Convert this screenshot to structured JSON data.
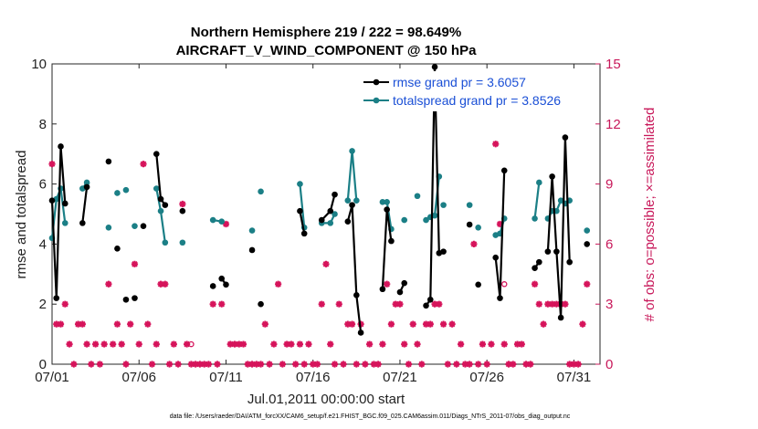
{
  "chart_data": {
    "type": "line",
    "title_line1": "Northern Hemisphere 219 / 222 = 98.649%",
    "title_line2": "AIRCRAFT_V_WIND_COMPONENT @ 150 hPa",
    "xlabel": "Jul.01,2011 00:00:00 start",
    "ylabel_left": "rmse and totalspread",
    "ylabel_right": "# of obs: o=possible; ×=assimilated",
    "footer": "data file: /Users/raeder/DAI/ATM_forcXX/CAM6_setup/f.e21.FHIST_BGC.f09_025.CAM6assim.011/Diags_NTrS_2011-07/obs_diag_output.nc",
    "xlim": [
      0,
      31.5
    ],
    "ylim_left": [
      0,
      10
    ],
    "ylim_right": [
      0,
      15
    ],
    "x_ticks": [
      {
        "x": 0,
        "label": "07/01"
      },
      {
        "x": 5,
        "label": "07/06"
      },
      {
        "x": 10,
        "label": "07/11"
      },
      {
        "x": 15,
        "label": "07/16"
      },
      {
        "x": 20,
        "label": "07/21"
      },
      {
        "x": 25,
        "label": "07/26"
      },
      {
        "x": 30,
        "label": "07/31"
      }
    ],
    "y_ticks_left": [
      {
        "v": 0,
        "label": "0"
      },
      {
        "v": 2,
        "label": "2"
      },
      {
        "v": 4,
        "label": "4"
      },
      {
        "v": 6,
        "label": "6"
      },
      {
        "v": 8,
        "label": "8"
      },
      {
        "v": 10,
        "label": "10"
      }
    ],
    "y_ticks_right": [
      {
        "v": 0,
        "label": "0"
      },
      {
        "v": 3,
        "label": "3"
      },
      {
        "v": 6,
        "label": "6"
      },
      {
        "v": 9,
        "label": "9"
      },
      {
        "v": 12,
        "label": "12"
      },
      {
        "v": 15,
        "label": "15"
      }
    ],
    "colors": {
      "rmse": "#000000",
      "spread": "#1b7f86",
      "obs": "#d6145b",
      "legend_text": "#1a4fd6"
    },
    "series": [
      {
        "name": "rmse grand pr = 3.6057",
        "points": [
          [
            [
              0,
              5.45
            ],
            [
              0.25,
              2.2
            ],
            [
              0.5,
              7.25
            ],
            [
              0.75,
              5.35
            ]
          ],
          [
            [
              1.75,
              4.7
            ],
            [
              2.0,
              5.9
            ]
          ],
          [
            [
              3.25,
              6.75
            ]
          ],
          [
            [
              3.75,
              3.85
            ]
          ],
          [
            [
              4.25,
              2.15
            ]
          ],
          [
            [
              4.75,
              2.2
            ]
          ],
          [
            [
              5.25,
              4.6
            ]
          ],
          [
            [
              6.0,
              7.0
            ],
            [
              6.25,
              5.5
            ],
            [
              6.5,
              5.3
            ]
          ],
          [
            [
              7.5,
              5.1
            ]
          ],
          [
            [
              9.25,
              2.6
            ]
          ],
          [
            [
              9.75,
              2.85
            ],
            [
              10.0,
              2.65
            ]
          ],
          [
            [
              11.5,
              3.8
            ]
          ],
          [
            [
              12.0,
              2.0
            ]
          ],
          [
            [
              14.25,
              5.1
            ],
            [
              14.5,
              4.35
            ]
          ],
          [
            [
              15.5,
              4.8
            ],
            [
              16.0,
              5.1
            ],
            [
              16.25,
              5.65
            ]
          ],
          [
            [
              17.0,
              4.75
            ],
            [
              17.25,
              5.3
            ],
            [
              17.5,
              2.3
            ],
            [
              17.75,
              1.05
            ]
          ],
          [
            [
              19.0,
              2.5
            ],
            [
              19.25,
              5.15
            ],
            [
              19.5,
              4.1
            ]
          ],
          [
            [
              20.0,
              2.4
            ],
            [
              20.25,
              2.7
            ]
          ],
          [
            [
              21.0,
              9.65
            ]
          ],
          [
            [
              21.5,
              1.95
            ],
            [
              21.75,
              2.15
            ],
            [
              22.0,
              9.9
            ],
            [
              22.25,
              3.7
            ]
          ],
          [
            [
              22.5,
              3.75
            ]
          ],
          [
            [
              24.0,
              4.65
            ]
          ],
          [
            [
              24.5,
              2.65
            ]
          ],
          [
            [
              25.5,
              3.55
            ],
            [
              25.75,
              2.2
            ],
            [
              26.0,
              6.45
            ]
          ],
          [
            [
              27.75,
              3.2
            ],
            [
              28.0,
              3.4
            ]
          ],
          [
            [
              28.5,
              3.75
            ],
            [
              28.75,
              6.25
            ],
            [
              29.0,
              3.75
            ],
            [
              29.25,
              1.55
            ],
            [
              29.5,
              7.55
            ],
            [
              29.75,
              3.4
            ]
          ],
          [
            [
              30.75,
              4.0
            ]
          ]
        ]
      },
      {
        "name": "totalspread grand pr = 3.8526",
        "points": [
          [
            [
              0,
              4.2
            ],
            [
              0.25,
              5.5
            ],
            [
              0.5,
              5.85
            ],
            [
              0.75,
              4.7
            ]
          ],
          [
            [
              1.75,
              5.85
            ],
            [
              2.0,
              6.05
            ]
          ],
          [
            [
              3.25,
              4.55
            ]
          ],
          [
            [
              3.75,
              5.7
            ]
          ],
          [
            [
              4.25,
              5.8
            ]
          ],
          [
            [
              4.75,
              4.6
            ]
          ],
          [
            [
              6.0,
              5.85
            ],
            [
              6.25,
              5.1
            ],
            [
              6.5,
              4.05
            ]
          ],
          [
            [
              7.5,
              4.05
            ]
          ],
          [
            [
              9.25,
              4.8
            ],
            [
              9.75,
              4.75
            ]
          ],
          [
            [
              11.5,
              4.45
            ]
          ],
          [
            [
              12.0,
              5.75
            ]
          ],
          [
            [
              14.25,
              6.0
            ],
            [
              14.5,
              4.55
            ]
          ],
          [
            [
              15.5,
              4.7
            ],
            [
              16.0,
              4.7
            ],
            [
              16.25,
              5.0
            ]
          ],
          [
            [
              17.0,
              5.45
            ],
            [
              17.25,
              7.1
            ],
            [
              17.5,
              5.45
            ]
          ],
          [
            [
              19.0,
              5.4
            ],
            [
              19.25,
              5.4
            ],
            [
              19.5,
              4.5
            ]
          ],
          [
            [
              20.25,
              4.8
            ]
          ],
          [
            [
              21.0,
              5.6
            ]
          ],
          [
            [
              21.5,
              4.8
            ],
            [
              21.75,
              4.9
            ],
            [
              22.0,
              4.95
            ],
            [
              22.25,
              6.25
            ]
          ],
          [
            [
              22.5,
              5.3
            ]
          ],
          [
            [
              24.0,
              5.3
            ]
          ],
          [
            [
              24.5,
              4.55
            ]
          ],
          [
            [
              25.5,
              4.3
            ],
            [
              25.75,
              4.35
            ],
            [
              26.0,
              4.85
            ]
          ],
          [
            [
              27.75,
              4.85
            ],
            [
              28.0,
              6.05
            ]
          ],
          [
            [
              28.5,
              4.85
            ],
            [
              28.75,
              5.1
            ],
            [
              29.0,
              5.1
            ],
            [
              29.25,
              5.45
            ],
            [
              29.5,
              5.35
            ],
            [
              29.75,
              5.45
            ]
          ],
          [
            [
              30.75,
              4.45
            ]
          ]
        ]
      },
      {
        "name": "# of obs assimilated",
        "points": [
          [
            0,
            10.0
          ],
          [
            0.25,
            2.0
          ],
          [
            0.5,
            2.0
          ],
          [
            0.75,
            3.0
          ],
          [
            1.0,
            1.0
          ],
          [
            1.25,
            0.0
          ],
          [
            1.5,
            2.0
          ],
          [
            1.75,
            2.0
          ],
          [
            2.0,
            1.0
          ],
          [
            2.25,
            0.0
          ],
          [
            2.5,
            1.0
          ],
          [
            2.75,
            0.0
          ],
          [
            3.0,
            1.0
          ],
          [
            3.25,
            4.0
          ],
          [
            3.5,
            1.0
          ],
          [
            3.75,
            2.0
          ],
          [
            4.0,
            1.0
          ],
          [
            4.25,
            0.0
          ],
          [
            4.5,
            2.0
          ],
          [
            4.75,
            5.0
          ],
          [
            5.0,
            1.0
          ],
          [
            5.25,
            10.0
          ],
          [
            5.5,
            2.0
          ],
          [
            5.75,
            0.0
          ],
          [
            6.0,
            1.0
          ],
          [
            6.25,
            4.0
          ],
          [
            6.5,
            4.0
          ],
          [
            6.75,
            0.0
          ],
          [
            7.0,
            1.0
          ],
          [
            7.25,
            0.0
          ],
          [
            7.5,
            8.0
          ],
          [
            7.75,
            1.0
          ],
          [
            8.0,
            0.0
          ],
          [
            8.25,
            0.0
          ],
          [
            8.5,
            0.0
          ],
          [
            8.75,
            0.0
          ],
          [
            9.0,
            0.0
          ],
          [
            9.25,
            3.0
          ],
          [
            9.5,
            0.0
          ],
          [
            9.75,
            3.0
          ],
          [
            10.0,
            7.0
          ],
          [
            10.25,
            1.0
          ],
          [
            10.5,
            1.0
          ],
          [
            10.75,
            1.0
          ],
          [
            11.0,
            1.0
          ],
          [
            11.25,
            0.0
          ],
          [
            11.5,
            0.0
          ],
          [
            11.75,
            0.0
          ],
          [
            12.0,
            0.0
          ],
          [
            12.25,
            2.0
          ],
          [
            12.5,
            0.0
          ],
          [
            12.75,
            1.0
          ],
          [
            13.0,
            4.0
          ],
          [
            13.25,
            0.0
          ],
          [
            13.5,
            1.0
          ],
          [
            13.75,
            1.0
          ],
          [
            14.0,
            0.0
          ],
          [
            14.25,
            1.0
          ],
          [
            14.5,
            0.0
          ],
          [
            14.75,
            1.0
          ],
          [
            15.0,
            0.0
          ],
          [
            15.25,
            0.0
          ],
          [
            15.5,
            3.0
          ],
          [
            15.75,
            5.0
          ],
          [
            16.0,
            1.0
          ],
          [
            16.25,
            0.0
          ],
          [
            16.5,
            3.0
          ],
          [
            16.75,
            0.0
          ],
          [
            17.0,
            2.0
          ],
          [
            17.25,
            2.0
          ],
          [
            17.5,
            0.0
          ],
          [
            17.75,
            2.0
          ],
          [
            18.0,
            0.0
          ],
          [
            18.25,
            1.0
          ],
          [
            18.5,
            0.0
          ],
          [
            18.75,
            0.0
          ],
          [
            19.0,
            1.0
          ],
          [
            19.25,
            4.0
          ],
          [
            19.5,
            2.0
          ],
          [
            19.75,
            3.0
          ],
          [
            20.0,
            3.0
          ],
          [
            20.25,
            1.0
          ],
          [
            20.5,
            0.0
          ],
          [
            20.75,
            2.0
          ],
          [
            21.0,
            1.0
          ],
          [
            21.25,
            0.0
          ],
          [
            21.5,
            2.0
          ],
          [
            21.75,
            2.0
          ],
          [
            22.0,
            3.0
          ],
          [
            22.25,
            3.0
          ],
          [
            22.5,
            2.0
          ],
          [
            22.75,
            0.0
          ],
          [
            23.0,
            2.0
          ],
          [
            23.25,
            0.0
          ],
          [
            23.5,
            1.0
          ],
          [
            23.75,
            0.0
          ],
          [
            24.0,
            0.0
          ],
          [
            24.25,
            6.0
          ],
          [
            24.5,
            0.0
          ],
          [
            24.75,
            1.0
          ],
          [
            25.0,
            0.0
          ],
          [
            25.25,
            1.0
          ],
          [
            25.5,
            11.0
          ],
          [
            25.75,
            7.0
          ],
          [
            26.0,
            1.0
          ],
          [
            26.25,
            0.0
          ],
          [
            26.5,
            0.0
          ],
          [
            26.75,
            1.0
          ],
          [
            27.0,
            1.0
          ],
          [
            27.25,
            0.0
          ],
          [
            27.5,
            0.0
          ],
          [
            27.75,
            4.0
          ],
          [
            28.0,
            3.0
          ],
          [
            28.25,
            2.0
          ],
          [
            28.5,
            3.0
          ],
          [
            28.75,
            3.0
          ],
          [
            29.0,
            3.0
          ],
          [
            29.25,
            3.0
          ],
          [
            29.5,
            3.0
          ],
          [
            29.75,
            0.0
          ],
          [
            30.0,
            0.0
          ],
          [
            30.25,
            0.0
          ],
          [
            30.5,
            2.0
          ],
          [
            30.75,
            4.0
          ]
        ]
      },
      {
        "name": "# of obs possible (only where visibly distinct)",
        "points": [
          [
            8.0,
            1.0
          ],
          [
            26.0,
            4.0
          ]
        ]
      }
    ],
    "legend": [
      "rmse grand pr = 3.6057",
      "totalspread grand pr = 3.8526"
    ]
  }
}
